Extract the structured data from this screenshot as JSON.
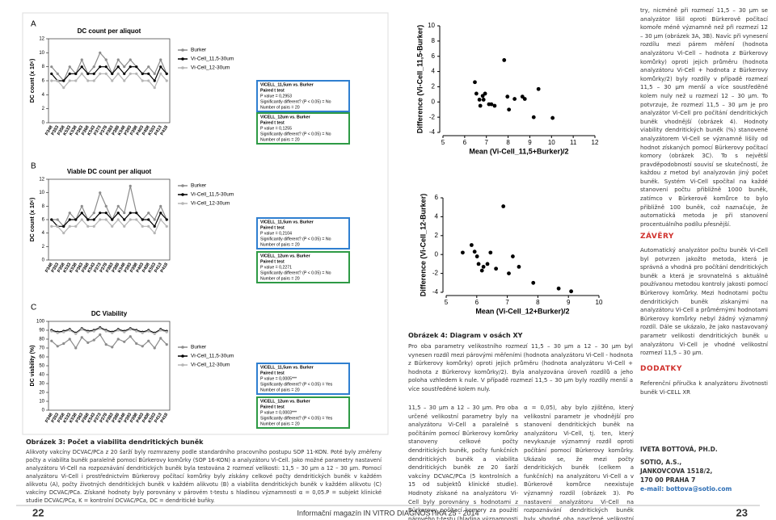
{
  "chart_data": [
    {
      "type": "line",
      "panel_label": "A",
      "title": "DC count per aliquot",
      "y_label": "DC count (x 10⁶)",
      "categories": [
        "P348",
        "P353",
        "P358",
        "K533",
        "K538",
        "P363",
        "P368",
        "K543",
        "P373",
        "P378",
        "P383",
        "P388",
        "K548",
        "P393",
        "P398",
        "P403",
        "P408",
        "K553",
        "P413",
        "P418"
      ],
      "series": [
        {
          "name": "Burker",
          "color": "#8c8c8c",
          "values": [
            8,
            7,
            6,
            8,
            7,
            9,
            7,
            8,
            10,
            9,
            7,
            9,
            8,
            9,
            8,
            7,
            8,
            7,
            9,
            7
          ]
        },
        {
          "name": "Vi-Cell_11,5-30um",
          "color": "#000000",
          "values": [
            7,
            6,
            6,
            7,
            7,
            8,
            7,
            7,
            8,
            8,
            7,
            8,
            7,
            8,
            8,
            7,
            7,
            6,
            8,
            7
          ]
        },
        {
          "name": "Vi-Cell_12-30um",
          "color": "#b5b5b5",
          "values": [
            6,
            6,
            5,
            6,
            6,
            7,
            6,
            6,
            7,
            7,
            6,
            7,
            6,
            7,
            7,
            6,
            6,
            5,
            7,
            6
          ]
        }
      ],
      "ylim": [
        0,
        12
      ],
      "yticks": [
        0,
        2,
        4,
        6,
        8,
        10,
        12
      ]
    },
    {
      "type": "line",
      "panel_label": "B",
      "title": "Viable DC count per aliquot",
      "y_label": "DC count (x 10⁶)",
      "categories": [
        "P348",
        "P353",
        "P358",
        "K533",
        "K538",
        "P363",
        "P368",
        "K543",
        "P373",
        "P378",
        "P383",
        "P388",
        "K548",
        "P393",
        "P398",
        "P403",
        "P408",
        "K553",
        "P413",
        "P418"
      ],
      "series": [
        {
          "name": "Burker",
          "color": "#8c8c8c",
          "values": [
            6,
            6,
            5,
            7,
            6,
            8,
            6,
            7,
            10,
            8,
            6,
            8,
            7,
            11,
            7,
            6,
            7,
            6,
            8,
            6
          ]
        },
        {
          "name": "Vi-Cell_11,5-30um",
          "color": "#000000",
          "values": [
            6,
            5,
            5,
            6,
            6,
            7,
            6,
            6,
            7,
            7,
            6,
            7,
            6,
            7,
            7,
            6,
            6,
            5,
            7,
            6
          ]
        },
        {
          "name": "Vi-Cell_12-30um",
          "color": "#b5b5b5",
          "values": [
            5,
            5,
            4,
            5,
            5,
            6,
            5,
            5,
            6,
            6,
            5,
            6,
            5,
            6,
            6,
            5,
            5,
            4,
            6,
            5
          ]
        }
      ],
      "ylim": [
        0,
        12
      ],
      "yticks": [
        0,
        2,
        4,
        6,
        8,
        10,
        12
      ]
    },
    {
      "type": "line",
      "panel_label": "C",
      "title": "DC Viability",
      "y_label": "DC viability (%)",
      "categories": [
        "P348",
        "P353",
        "P358",
        "K533",
        "K538",
        "P363",
        "P368",
        "K543",
        "P373",
        "P378",
        "P383",
        "P388",
        "K548",
        "P393",
        "P398",
        "P403",
        "P408",
        "K553",
        "P413",
        "P418"
      ],
      "series": [
        {
          "name": "Burker",
          "color": "#8c8c8c",
          "values": [
            78,
            72,
            75,
            80,
            70,
            82,
            76,
            79,
            85,
            74,
            71,
            80,
            77,
            83,
            75,
            72,
            78,
            70,
            81,
            74
          ]
        },
        {
          "name": "Vi-Cell_11,5-30um",
          "color": "#000000",
          "values": [
            90,
            88,
            89,
            91,
            87,
            92,
            89,
            90,
            93,
            90,
            88,
            91,
            89,
            92,
            90,
            88,
            90,
            87,
            91,
            89
          ]
        },
        {
          "name": "Vi-Cell_12-30um",
          "color": "#b5b5b5",
          "values": [
            89,
            87,
            88,
            90,
            86,
            91,
            88,
            89,
            92,
            89,
            87,
            90,
            88,
            91,
            89,
            87,
            89,
            86,
            90,
            88
          ]
        }
      ],
      "ylim": [
        0,
        100
      ],
      "yticks": [
        0,
        10,
        20,
        30,
        40,
        50,
        60,
        70,
        80,
        90,
        100
      ]
    },
    {
      "type": "scatter",
      "x_label": "Mean (Vi-Cell_11,5+Burker)/2",
      "y_label": "Difference (Vi-Cell_11,5-Burker)",
      "color": "#000000",
      "x": [
        6.47,
        6.54,
        6.68,
        6.72,
        6.83,
        6.87,
        6.94,
        7.12,
        7.23,
        7.38,
        7.82,
        7.97,
        8.04,
        8.3,
        8.66,
        8.77,
        9.18,
        9.4,
        10.05
      ],
      "values": [
        2.6,
        1.1,
        0.3,
        -0.5,
        0.8,
        0.3,
        1.1,
        -0.3,
        -0.3,
        -0.5,
        5.5,
        0.7,
        -1.0,
        0.4,
        0.7,
        0.4,
        -2.0,
        1.7,
        -2.1
      ],
      "xlim": [
        5,
        12
      ],
      "xticks": [
        5,
        6,
        7,
        8,
        9,
        10,
        11,
        12
      ],
      "ylim": [
        -4,
        10
      ],
      "yticks": [
        -4,
        -2,
        0,
        2,
        4,
        6,
        8,
        10
      ]
    },
    {
      "type": "scatter",
      "x_label": "Mean (Vi-Cell_12+Burker)/2",
      "y_label": "Difference (Vi-Cell_12-Burker)",
      "color": "#000000",
      "x": [
        5.54,
        5.83,
        5.93,
        6.01,
        6.06,
        6.17,
        6.22,
        6.35,
        6.45,
        6.63,
        6.87,
        7.05,
        7.18,
        7.38,
        7.85,
        8.68,
        9.09
      ],
      "values": [
        0.2,
        1.0,
        0.3,
        -0.2,
        -1.0,
        -1.7,
        -1.3,
        -1.0,
        0.2,
        -1.5,
        5.1,
        -2.0,
        -0.2,
        -1.3,
        -3.0,
        -3.6,
        -3.9
      ],
      "xlim": [
        5,
        10
      ],
      "xticks": [
        5,
        6,
        7,
        8,
        9,
        10
      ],
      "ylim": [
        -4,
        6
      ],
      "yticks": [
        -4,
        -2,
        0,
        2,
        4,
        6
      ]
    }
  ],
  "stat_tests": [
    {
      "color": "#2f7fd0",
      "lines": [
        "VICELL_11,5um vs. Burker",
        "Paired t test",
        "P value = 0,2953",
        "Significantly different? (P < 0.05) = No",
        "Number of pairs = 20"
      ]
    },
    {
      "color": "#2e9a45",
      "lines": [
        "VICELL_12um vs. Burker",
        "Paired t test",
        "P value = 0,1255",
        "Significantly different? (P < 0.05) = No",
        "Number of pairs = 20"
      ]
    },
    {
      "color": "#2f7fd0",
      "lines": [
        "VICELL_11,5um vs. Burker",
        "Paired t test",
        "P value = 0,2104",
        "Significantly different? (P < 0.05) = No",
        "Number of pairs = 20"
      ]
    },
    {
      "color": "#2e9a45",
      "lines": [
        "VICELL_12um vs. Burker",
        "Paired t test",
        "P value = 0,2271",
        "Significantly different? (P < 0.05) = No",
        "Number of pairs = 20"
      ]
    },
    {
      "color": "#2f7fd0",
      "lines": [
        "VICELL_11,5um vs. Burker",
        "Paired t test",
        "P value = 0,0005***",
        "Significantly different? (P < 0.05) = Yes",
        "Number of pairs = 20"
      ]
    },
    {
      "color": "#2e9a45",
      "lines": [
        "VICELL_12um vs. Burker",
        "Paired t test",
        "P value = 0,0003***",
        "Significantly different? (P < 0.05) = Yes",
        "Number of pairs = 20"
      ]
    }
  ],
  "figure_3": {
    "title": "Obrázek 3: Počet a viabilita dendritických buněk",
    "text": "Alikvoty vakcíny DCVAC/PCa z 20 šarží byly rozmrazeny podle standardního pracovního postupu SOP 11-KON. Poté byly změřeny počty a viabilita buněk paralelně pomocí Bürkerovy komůrky (SOP 16-KON) a analyzátoru Vi-Cell. Jako možné parametry nastavení analyzátoru Vi-Cell na rozpoznávání dendritických buněk byla testována 2 rozmezí velikosti: 11,5 – 30 µm a 12 – 30 µm. Pomocí analyzátoru Vi-Cell i prostřednictvím Bürkerovy počítací komůrky byly získány celkové počty dendritických buněk v každém alikvotu (A), počty životných dendritických buněk v každém alikvotu (B) a viabilita dendritických buněk v každém alikvotu (C) vakcíny DCVAC/PCa. Získané hodnoty byly porovnány v párovém t-testu s hladinou významnosti α = 0,05.P = subjekt klinické studie DCVAC/PCa, K = kontrolní DCVAC/PCa, DC = dendritické buňky."
  },
  "figure_4": {
    "title": "Obrázek 4: Diagram v osách XY",
    "text": "Pro oba parametry velikostního rozmezí 11,5 – 30 µm a 12 – 30 µm byl vynesen rozdíl mezi párovými měřeními (hodnota analyzátoru Vi-Cell - hodnota z Bürkerovy komůrky) oproti jejich průměru (hodnota analyzátoru Vi-Cell + hodnota z Bürkerovy komůrky/2). Byla analyzována úroveň rozdílů a jeho poloha vzhledem k nule. V případě rozmezí 11,5 – 30 µm byly rozdíly menší a více soustředěné kolem nuly."
  },
  "body": {
    "column_1": "11,5 – 30 µm a 12 – 30 µm. Pro oba určené velikostní parametry byly na analyzátoru Vi-Cell a paralelně s počítáním pomocí Bürkerovy komůrky stanoveny celkové počty dendritických buněk, počty funkčních dendritických buněk a viabilita dendritických buněk ze 20 šarží vakcíny DCVAC/PCa (5 kontrolních a 15 od subjektů klinické studie). Hodnoty získané na analyzátoru Vi-Cell byly porovnány s hodnotami z Bürkerovy počítací komory za použití párového t-testu (hladina významnosti",
    "column_2": "α = 0,05), aby bylo zjištěno, který velikostní parametr je vhodnější pro stanovení dendritických buněk na analyzátoru Vi-Cell, tj. ten, který nevykazuje významný rozdíl oproti počítání pomocí Bürkerovy komůrky. Ukázalo se, že mezi počty dendritických buněk (celkem a funkčních) na analyzátoru Vi-Cell a v Bürkerově komůrce neexistuje významný rozdíl (obrázek 3). Po nastavení analyzátoru Vi-Cell na rozpoznávání dendritických buněk byly vhodné oba navržené velikostní parame-",
    "column_3": "try, nicméně při rozmezí 11,5 – 30 µm se analyzátor lišil oproti Bürkerově počítací komoře méně významně než při rozmezí 12 – 30 µm (obrázek 3A, 3B). Navíc při vynesení rozdílu mezi párem měření (hodnota analyzátoru Vi-Cell – hodnota z Bürkerovy komůrky) oproti jejich průměru (hodnota analyzátoru Vi-Cell + hodnota z Bürkerovy komůrky/2) byly rozdíly v případě rozmezí 11,5 – 30 µm menší a více soustředěné kolem nuly než u rozmezí 12 – 30 µm. To potvrzuje, že rozmezí 11,5 – 30 µm je pro analyzátor Vi-Cell pro počítání dendritických buněk vhodnější (obrázek 4). Hodnoty viability dendritických buněk (%) stanovené analyzátorem Vi-Cell se významně lišily od hodnot získaných pomocí Bürkerovy počítací komory (obrázek 3C). To s největší pravděpodobností souvisí se skutečností, že každou z metod byl analyzován jiný počet buněk. Systém Vi-Cell spočítal na každé stanovení počtu přibližně 1000 buněk, zatímco v Bürkerově komůrce to bylo přibližně 100 buněk, což naznačuje, že automatická metoda je při stanovení procentuálního podílu přesnější."
  },
  "conclusions": {
    "heading": "ZÁVĚRY",
    "text": "Automatický analyzátor počtu buněk Vi-Cell byl potvrzen jakožto metoda, která je správná a vhodná pro počítání dendritických buněk a která je srovnatelná s aktuálně používanou metodou kontroly jakosti pomocí Bürkerovy komůrky. Mezi hodnotami počtu dendritických buněk získanými na analyzátoru Vi-Cell a průměrnými hodnotami Bürkerovy komůrky nebyl žádný významný rozdíl. Dále se ukázalo, že jako nastavovaný parametr velikosti dendritických buněk u analyzátoru Vi-Cell je vhodné velikostní rozmezí 11,5 – 30 µm."
  },
  "appendix": {
    "heading": "DODATKY",
    "text": "Referenční příručka k analyzátoru životnosti buněk Vi-CELL XR"
  },
  "author": {
    "name": "IVETA BOTTOVÁ, PH.D.",
    "address": [
      "SOTIO, A.S.,",
      "JANKOVCOVA 1518/2,",
      "170 00 PRAHA 7"
    ],
    "email": "e-mail: bottova@sotio.com"
  },
  "footer": {
    "left_page": "22",
    "magazine": "Informační magazín IN VITRO DIAGNOSTIKA 25 - 2014",
    "right_page": "23"
  }
}
